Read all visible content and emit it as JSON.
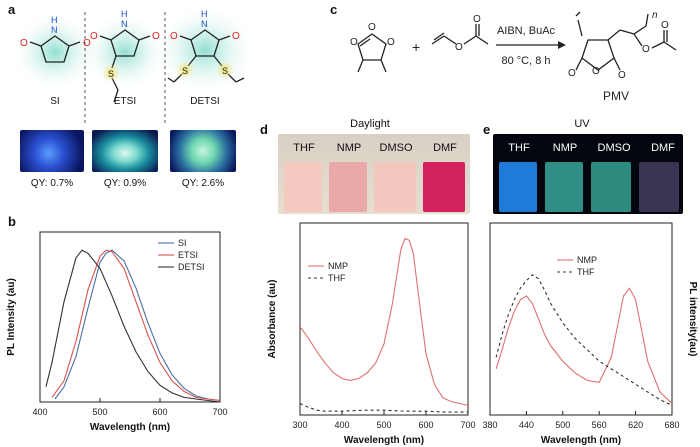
{
  "panel_labels": {
    "a": "a",
    "b": "b",
    "c": "c",
    "d": "d",
    "e": "e"
  },
  "panel_a": {
    "molecules": [
      {
        "name": "SI",
        "qy": "QY: 0.7%"
      },
      {
        "name": "ETSI",
        "qy": "QY: 0.9%"
      },
      {
        "name": "DETSI",
        "qy": "QY: 2.6%"
      }
    ],
    "atoms": {
      "O": "O",
      "N": "N",
      "H": "H",
      "S": "S"
    }
  },
  "panel_c": {
    "reagents": "AIBN, BuAc",
    "conditions": "80 °C, 8 h",
    "plus": "+",
    "product": "PMV",
    "atoms": {
      "O": "O",
      "n": "n"
    }
  },
  "panel_d_photo": {
    "title": "Daylight",
    "solvents": [
      "THF",
      "NMP",
      "DMSO",
      "DMF"
    ]
  },
  "panel_e_photo": {
    "title": "UV",
    "solvents": [
      "THF",
      "NMP",
      "DMSO",
      "DMF"
    ]
  },
  "colors": {
    "SI": "#4a6fa5",
    "ETSI": "#d9534f",
    "DETSI": "#333333",
    "NMP": "#e07070",
    "THF": "#333333"
  },
  "chart_data": [
    {
      "id": "b",
      "type": "line",
      "xlabel": "Wavelength (nm)",
      "ylabel": "PL Intensity (au)",
      "xlim": [
        400,
        700
      ],
      "ylim": [
        0,
        1.12
      ],
      "xticks": [
        400,
        500,
        600,
        700
      ],
      "legend_position": "top-right",
      "series": [
        {
          "name": "SI",
          "x": [
            425,
            440,
            460,
            480,
            500,
            510,
            520,
            540,
            560,
            580,
            600,
            620,
            640,
            660,
            680,
            700
          ],
          "y": [
            0.02,
            0.1,
            0.3,
            0.62,
            0.92,
            0.98,
            1.0,
            0.93,
            0.75,
            0.52,
            0.32,
            0.18,
            0.09,
            0.04,
            0.02,
            0.01
          ]
        },
        {
          "name": "ETSI",
          "x": [
            420,
            440,
            460,
            480,
            500,
            510,
            520,
            540,
            560,
            580,
            600,
            620,
            640,
            660,
            680,
            700
          ],
          "y": [
            0.03,
            0.14,
            0.4,
            0.74,
            0.96,
            1.0,
            0.99,
            0.88,
            0.66,
            0.44,
            0.26,
            0.14,
            0.07,
            0.03,
            0.02,
            0.01
          ]
        },
        {
          "name": "DETSI",
          "x": [
            410,
            420,
            440,
            460,
            470,
            480,
            500,
            520,
            540,
            560,
            580,
            600,
            620,
            640,
            660,
            680,
            700
          ],
          "y": [
            0.1,
            0.26,
            0.66,
            0.95,
            1.0,
            0.98,
            0.88,
            0.7,
            0.5,
            0.33,
            0.2,
            0.11,
            0.06,
            0.03,
            0.02,
            0.01,
            0.0
          ]
        }
      ]
    },
    {
      "id": "d",
      "type": "line",
      "xlabel": "Wavelength (nm)",
      "ylabel": "Absorbance (au)",
      "xlim": [
        300,
        700
      ],
      "ylim": [
        0,
        1.0
      ],
      "xticks": [
        300,
        400,
        500,
        600,
        700
      ],
      "legend_position": "top-left",
      "series": [
        {
          "name": "NMP",
          "x": [
            300,
            320,
            340,
            360,
            380,
            400,
            420,
            440,
            460,
            480,
            500,
            520,
            540,
            550,
            560,
            570,
            580,
            600,
            620,
            640,
            660,
            680,
            700
          ],
          "y": [
            0.46,
            0.4,
            0.33,
            0.27,
            0.22,
            0.19,
            0.18,
            0.19,
            0.22,
            0.27,
            0.37,
            0.58,
            0.86,
            0.92,
            0.91,
            0.84,
            0.66,
            0.32,
            0.16,
            0.09,
            0.07,
            0.06,
            0.05
          ]
        },
        {
          "name": "THF",
          "x": [
            300,
            320,
            340,
            360,
            400,
            450,
            500,
            550,
            600,
            650,
            700
          ],
          "y": [
            0.06,
            0.04,
            0.025,
            0.02,
            0.02,
            0.025,
            0.025,
            0.02,
            0.02,
            0.015,
            0.015
          ]
        }
      ]
    },
    {
      "id": "e",
      "type": "line",
      "xlabel": "Wavelength (nm)",
      "ylabel": "PL intensity(au)",
      "xlim": [
        380,
        680
      ],
      "ylim": [
        0,
        1.0
      ],
      "xticks": [
        380,
        440,
        500,
        560,
        620,
        680
      ],
      "xtick_labels": [
        "380",
        "440",
        "500",
        "560",
        "620",
        "680"
      ],
      "legend_position": "top-center",
      "series": [
        {
          "name": "NMP",
          "x": [
            390,
            400,
            410,
            420,
            430,
            440,
            450,
            460,
            470,
            480,
            500,
            520,
            540,
            560,
            580,
            590,
            600,
            610,
            620,
            630,
            640,
            660,
            680
          ],
          "y": [
            0.24,
            0.34,
            0.45,
            0.54,
            0.6,
            0.62,
            0.58,
            0.5,
            0.42,
            0.36,
            0.28,
            0.22,
            0.18,
            0.17,
            0.3,
            0.46,
            0.62,
            0.66,
            0.6,
            0.44,
            0.28,
            0.12,
            0.06
          ]
        },
        {
          "name": "THF",
          "x": [
            390,
            400,
            410,
            420,
            430,
            440,
            450,
            460,
            470,
            480,
            500,
            520,
            540,
            560,
            580,
            600,
            620,
            640,
            660,
            680
          ],
          "y": [
            0.3,
            0.42,
            0.52,
            0.6,
            0.66,
            0.7,
            0.73,
            0.71,
            0.65,
            0.58,
            0.48,
            0.4,
            0.34,
            0.28,
            0.24,
            0.2,
            0.16,
            0.12,
            0.08,
            0.05
          ]
        }
      ]
    }
  ]
}
